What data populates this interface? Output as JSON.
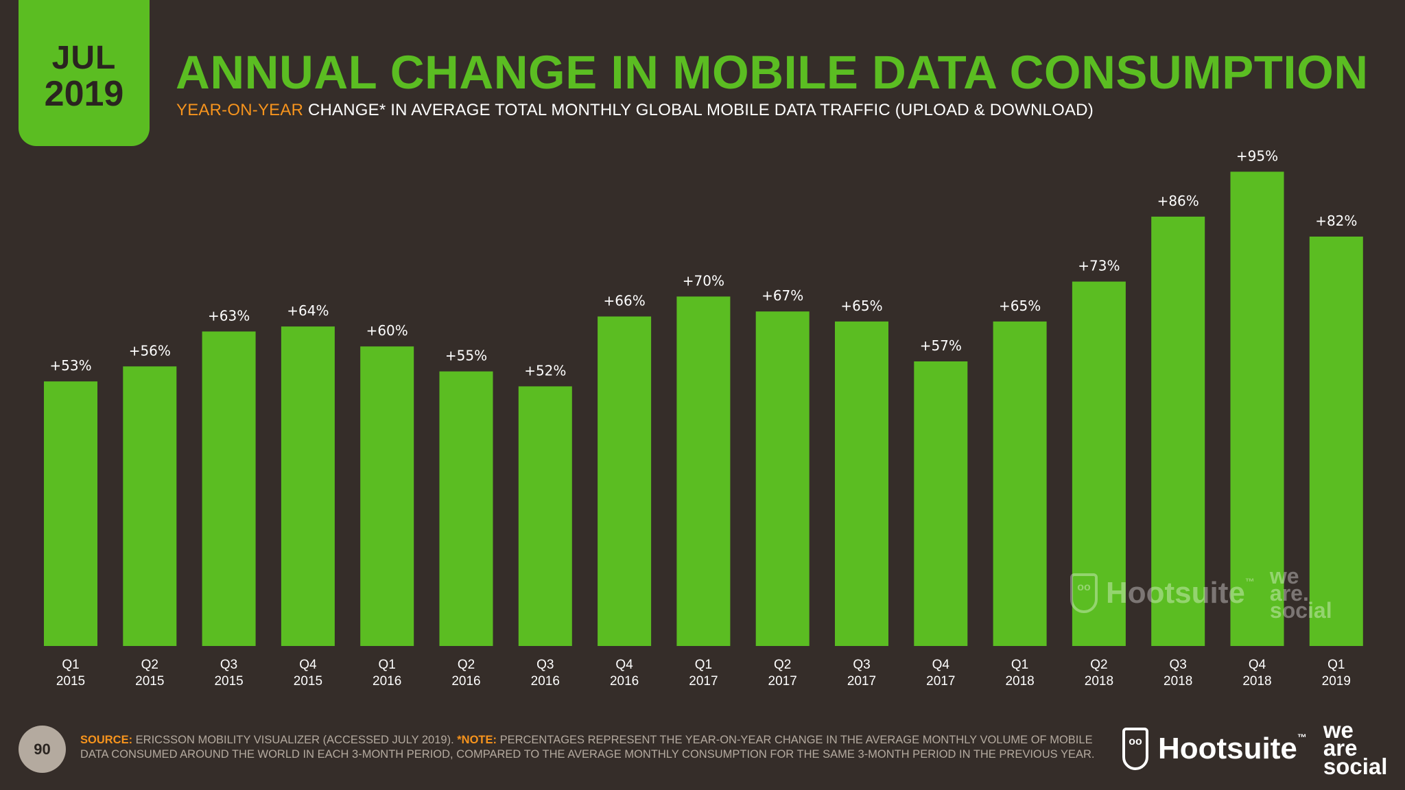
{
  "badge": {
    "month": "JUL",
    "year": "2019"
  },
  "title": "ANNUAL CHANGE IN MOBILE DATA CONSUMPTION",
  "subtitle": {
    "accent": "YEAR-ON-YEAR",
    "rest": " CHANGE* IN AVERAGE TOTAL MONTHLY GLOBAL MOBILE DATA TRAFFIC (UPLOAD & DOWNLOAD)"
  },
  "colors": {
    "background": "#352d29",
    "bar": "#5bbd22",
    "title": "#5bbd22",
    "accent": "#f7941d",
    "muted": "#b4aa9f"
  },
  "chart_data": {
    "type": "bar",
    "title": "ANNUAL CHANGE IN MOBILE DATA CONSUMPTION",
    "xlabel": "",
    "ylabel": "",
    "ylim": [
      0,
      100
    ],
    "grid": false,
    "legend": "none",
    "categories": [
      [
        "Q1",
        "2015"
      ],
      [
        "Q2",
        "2015"
      ],
      [
        "Q3",
        "2015"
      ],
      [
        "Q4",
        "2015"
      ],
      [
        "Q1",
        "2016"
      ],
      [
        "Q2",
        "2016"
      ],
      [
        "Q3",
        "2016"
      ],
      [
        "Q4",
        "2016"
      ],
      [
        "Q1",
        "2017"
      ],
      [
        "Q2",
        "2017"
      ],
      [
        "Q3",
        "2017"
      ],
      [
        "Q4",
        "2017"
      ],
      [
        "Q1",
        "2018"
      ],
      [
        "Q2",
        "2018"
      ],
      [
        "Q3",
        "2018"
      ],
      [
        "Q4",
        "2018"
      ],
      [
        "Q1",
        "2019"
      ]
    ],
    "values": [
      53,
      56,
      63,
      64,
      60,
      55,
      52,
      66,
      70,
      67,
      65,
      57,
      65,
      73,
      86,
      95,
      82
    ],
    "value_labels": [
      "+53%",
      "+56%",
      "+63%",
      "+64%",
      "+60%",
      "+55%",
      "+52%",
      "+66%",
      "+70%",
      "+67%",
      "+65%",
      "+57%",
      "+65%",
      "+73%",
      "+86%",
      "+95%",
      "+82%"
    ]
  },
  "watermark": {
    "brand": "Hootsuite",
    "tm": "™",
    "partner_lines": [
      "we",
      "are.",
      "social"
    ]
  },
  "footer": {
    "page_number": "90",
    "source_label": "SOURCE:",
    "source_text": " ERICSSON MOBILITY VISUALIZER (ACCESSED JULY 2019). ",
    "note_label": "*NOTE:",
    "note_text": " PERCENTAGES REPRESENT THE YEAR-ON-YEAR CHANGE IN THE AVERAGE MONTHLY VOLUME OF MOBILE DATA CONSUMED AROUND THE WORLD IN EACH 3-MONTH PERIOD, COMPARED TO THE AVERAGE MONTHLY CONSUMPTION FOR THE SAME 3-MONTH PERIOD IN THE PREVIOUS YEAR."
  },
  "logo": {
    "brand": "Hootsuite",
    "tm": "™",
    "partner_lines": [
      "we",
      "are",
      "social"
    ]
  }
}
